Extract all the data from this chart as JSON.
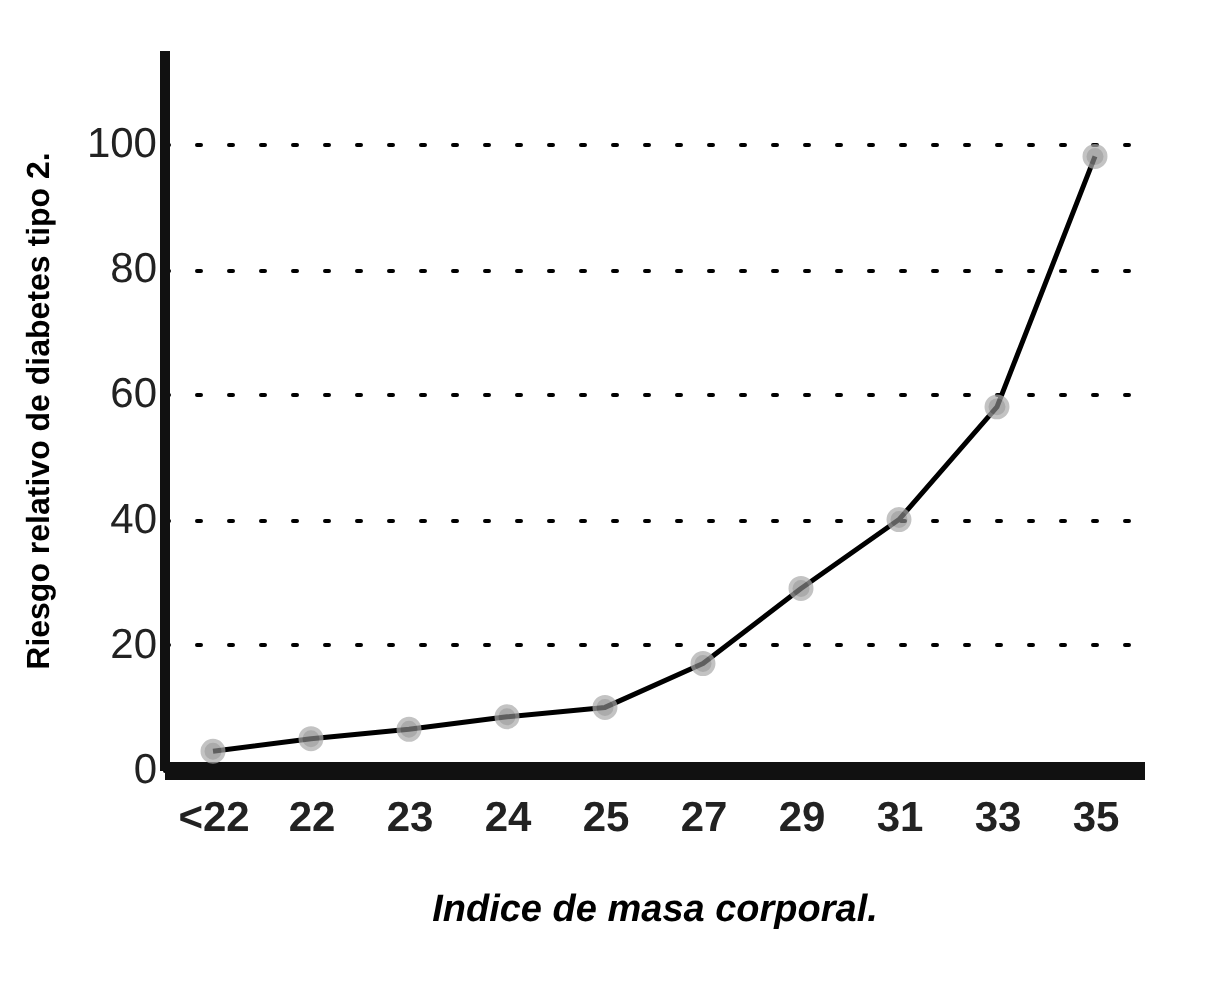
{
  "chart_data": {
    "type": "line",
    "xlabel": "Indice de masa corporal.",
    "ylabel": "Riesgo relativo de diabetes tipo 2.",
    "categories": [
      "<22",
      "22",
      "23",
      "24",
      "25",
      "27",
      "29",
      "31",
      "33",
      "35"
    ],
    "series": [
      {
        "color": "#000000",
        "values": [
          3,
          5,
          6.5,
          8.5,
          10,
          17,
          29,
          40,
          58,
          98
        ]
      }
    ],
    "ylim": [
      0,
      115
    ],
    "yticks": [
      0,
      20,
      40,
      60,
      80,
      100
    ],
    "grid": "y",
    "marker": "circle",
    "line_style": "solid"
  }
}
